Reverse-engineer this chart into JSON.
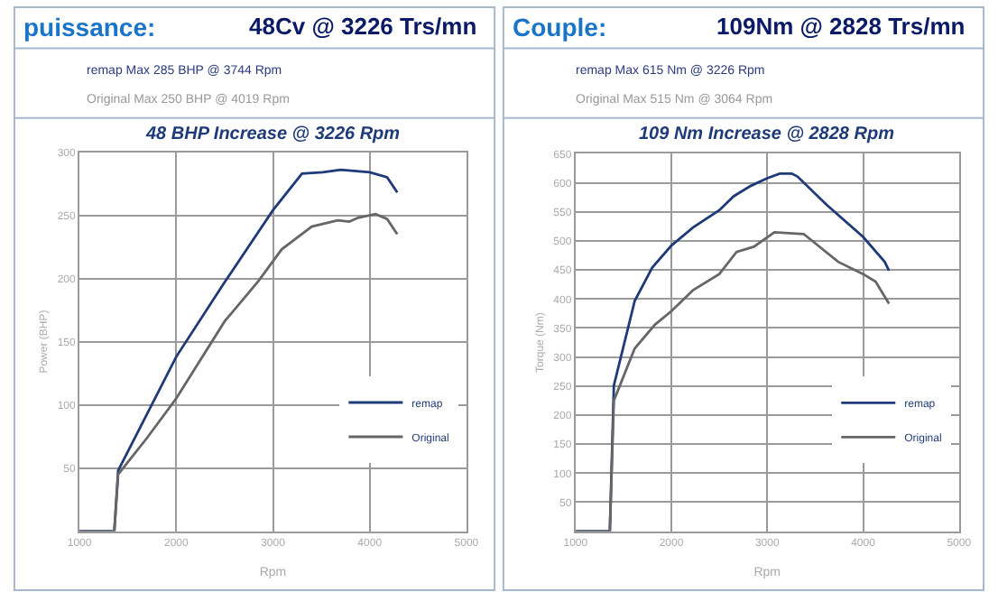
{
  "chart_data": [
    {
      "type": "line",
      "title": "puissance:",
      "subtitle": "48Cv @ 3226 Trs/mn",
      "annotations": [
        "remap Max 285 BHP @ 3744 Rpm",
        "Original Max 250 BHP @ 4019 Rpm",
        "48 BHP Increase @ 3226 Rpm"
      ],
      "xlabel": "Rpm",
      "ylabel": "Power (BHP)",
      "xlim": [
        1000,
        5000
      ],
      "xticks": [
        1000,
        2000,
        3000,
        4000,
        5000
      ],
      "ylim": [
        0,
        300
      ],
      "yticks": [
        50,
        100,
        150,
        200,
        250,
        300
      ],
      "grid": true,
      "legend": "bottom right",
      "marker": "none",
      "line_style": "solid",
      "series": [
        {
          "name": "remap",
          "color": "#1f3a78",
          "x": [
            1000,
            1360,
            1400,
            1700,
            2000,
            2500,
            3000,
            3300,
            3515,
            3700,
            4000,
            4180,
            4285
          ],
          "values": [
            0,
            0,
            48,
            93,
            138,
            197,
            254,
            283,
            284,
            286,
            284,
            280,
            268
          ]
        },
        {
          "name": "Original",
          "color": "#666666",
          "x": [
            1000,
            1360,
            1400,
            1700,
            2000,
            2500,
            2850,
            3090,
            3400,
            3670,
            3790,
            3880,
            4060,
            4180,
            4285
          ],
          "values": [
            0,
            0,
            45,
            74,
            105,
            166,
            198,
            223,
            241,
            246,
            245,
            248,
            251,
            247,
            235
          ]
        }
      ]
    },
    {
      "type": "line",
      "title": "Couple:",
      "subtitle": "109Nm @ 2828 Trs/mn",
      "annotations": [
        "remap Max 615 Nm @ 3226 Rpm",
        "Original Max 515 Nm @ 3064 Rpm",
        "109 Nm Increase @ 2828 Rpm"
      ],
      "xlabel": "Rpm",
      "ylabel": "Torque (Nm)",
      "xlim": [
        1000,
        5000
      ],
      "xticks": [
        1000,
        2000,
        3000,
        4000,
        5000
      ],
      "ylim": [
        0,
        650
      ],
      "yticks": [
        50,
        100,
        150,
        200,
        250,
        300,
        350,
        400,
        450,
        500,
        550,
        600,
        650
      ],
      "grid": true,
      "legend": "bottom right",
      "marker": "none",
      "line_style": "solid",
      "series": [
        {
          "name": "remap",
          "color": "#1f3a78",
          "x": [
            1000,
            1358,
            1400,
            1618,
            1800,
            2000,
            2225,
            2500,
            2650,
            2830,
            3000,
            3130,
            3255,
            3315,
            3620,
            4000,
            4225,
            4270
          ],
          "values": [
            0,
            0,
            251,
            397,
            454,
            492,
            523,
            553,
            577,
            595,
            608,
            616,
            616,
            611,
            562,
            507,
            464,
            449
          ]
        },
        {
          "name": "Original",
          "color": "#666666",
          "x": [
            1000,
            1358,
            1400,
            1618,
            1830,
            2000,
            2225,
            2500,
            2680,
            2860,
            3075,
            3380,
            3740,
            4000,
            4130,
            4270
          ],
          "values": [
            0,
            0,
            225,
            315,
            356,
            379,
            415,
            443,
            481,
            490,
            515,
            512,
            464,
            443,
            430,
            392
          ]
        }
      ]
    }
  ]
}
